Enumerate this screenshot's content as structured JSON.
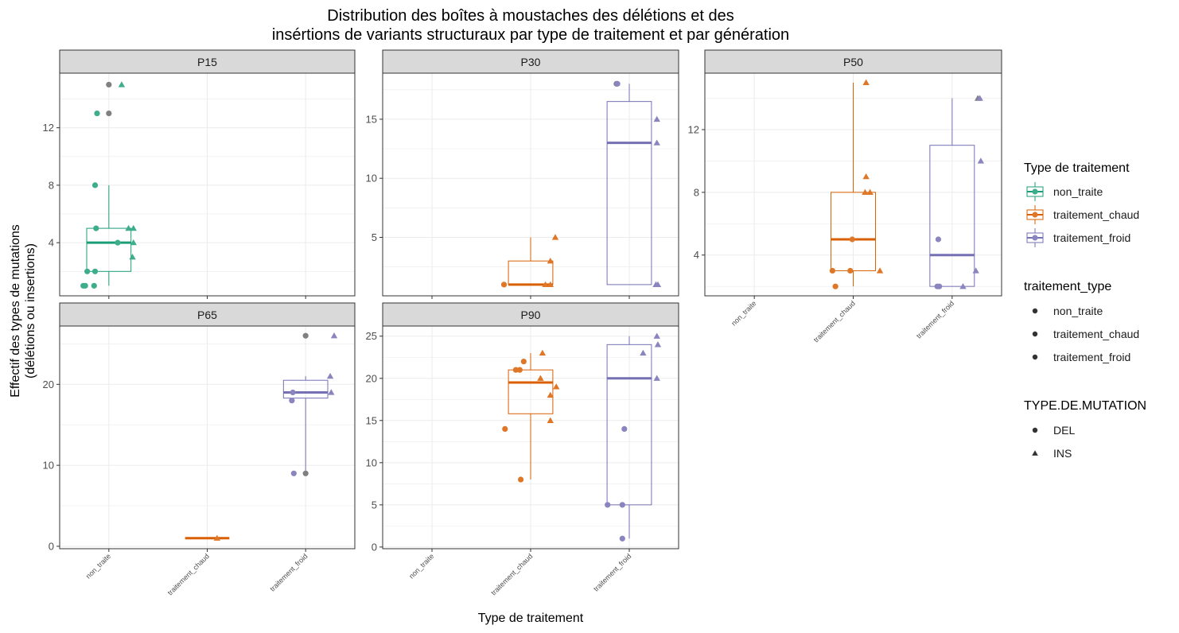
{
  "chart_data": {
    "type": "box",
    "title_line1": "Distribution des boîtes à moustaches des délétions et des",
    "title_line2": "insértions de variants structuraux  par type de traitement et par génération",
    "xlabel": "Type de traitement",
    "ylabel_line1": "Effectif des types de mutations",
    "ylabel_line2": "(délétions ou insertions)",
    "categories": [
      "non_traite",
      "traitement_chaud",
      "traitement_froid"
    ],
    "colors": {
      "non_traite": "#1B9E77",
      "traitement_chaud": "#D95F02",
      "traitement_froid": "#7570B3",
      "overlap": "#808080",
      "strip": "#D9D9D9",
      "grid": "#EBEBEB"
    },
    "legend": {
      "fill_title": "Type de traitement",
      "type_title": "traitement_type",
      "shape_title": "TYPE.DE.MUTATION",
      "fill_items": [
        "non_traite",
        "traitement_chaud",
        "traitement_froid"
      ],
      "type_items": [
        "non_traite",
        "traitement_chaud",
        "traitement_froid"
      ],
      "shape_items": [
        "DEL",
        "INS"
      ],
      "placement": "right"
    },
    "panels": [
      {
        "name": "P15",
        "ylim": [
          0.3,
          15.8
        ],
        "yticks": [
          4,
          8,
          12
        ],
        "show_x_labels": false,
        "boxes": [
          {
            "category": "non_traite",
            "whisker_low": 1,
            "q1": 2,
            "median": 4,
            "q3": 5,
            "whisker_high": 8
          }
        ],
        "points": [
          {
            "category": "non_traite",
            "y": 15,
            "shape": "DEL",
            "color": "overlap",
            "jitter": 0.0
          },
          {
            "category": "non_traite",
            "y": 15,
            "shape": "INS",
            "color": "non_traite",
            "jitter": 0.13
          },
          {
            "category": "non_traite",
            "y": 13,
            "shape": "DEL",
            "color": "non_traite",
            "jitter": -0.12
          },
          {
            "category": "non_traite",
            "y": 13,
            "shape": "DEL",
            "color": "overlap",
            "jitter": 0.0
          },
          {
            "category": "non_traite",
            "y": 8,
            "shape": "DEL",
            "color": "non_traite",
            "jitter": -0.14
          },
          {
            "category": "non_traite",
            "y": 5,
            "shape": "DEL",
            "color": "non_traite",
            "jitter": -0.13
          },
          {
            "category": "non_traite",
            "y": 5,
            "shape": "INS",
            "color": "non_traite",
            "jitter": 0.2
          },
          {
            "category": "non_traite",
            "y": 5,
            "shape": "INS",
            "color": "non_traite",
            "jitter": 0.25
          },
          {
            "category": "non_traite",
            "y": 4,
            "shape": "DEL",
            "color": "non_traite",
            "jitter": 0.09
          },
          {
            "category": "non_traite",
            "y": 4,
            "shape": "INS",
            "color": "non_traite",
            "jitter": 0.25
          },
          {
            "category": "non_traite",
            "y": 3,
            "shape": "INS",
            "color": "non_traite",
            "jitter": 0.24
          },
          {
            "category": "non_traite",
            "y": 2,
            "shape": "DEL",
            "color": "non_traite",
            "jitter": -0.22
          },
          {
            "category": "non_traite",
            "y": 2,
            "shape": "DEL",
            "color": "non_traite",
            "jitter": -0.14
          },
          {
            "category": "non_traite",
            "y": 1,
            "shape": "DEL",
            "color": "non_traite",
            "jitter": -0.26
          },
          {
            "category": "non_traite",
            "y": 1,
            "shape": "DEL",
            "color": "non_traite",
            "jitter": -0.24
          },
          {
            "category": "non_traite",
            "y": 1,
            "shape": "DEL",
            "color": "non_traite",
            "jitter": -0.15
          }
        ]
      },
      {
        "name": "P30",
        "ylim": [
          0.05,
          18.9
        ],
        "yticks": [
          5,
          10,
          15
        ],
        "show_x_labels": false,
        "boxes": [
          {
            "category": "traitement_chaud",
            "whisker_low": 1,
            "q1": 1,
            "median": 1,
            "q3": 3,
            "whisker_high": 5
          },
          {
            "category": "traitement_froid",
            "whisker_low": 1,
            "q1": 1,
            "median": 13,
            "q3": 16.5,
            "whisker_high": 18
          }
        ],
        "points": [
          {
            "category": "traitement_chaud",
            "y": 5,
            "shape": "INS",
            "color": "traitement_chaud",
            "jitter": 0.25
          },
          {
            "category": "traitement_chaud",
            "y": 3,
            "shape": "INS",
            "color": "traitement_chaud",
            "jitter": 0.2
          },
          {
            "category": "traitement_chaud",
            "y": 1,
            "shape": "DEL",
            "color": "traitement_chaud",
            "jitter": -0.27
          },
          {
            "category": "traitement_chaud",
            "y": 1,
            "shape": "INS",
            "color": "traitement_chaud",
            "jitter": 0.15
          },
          {
            "category": "traitement_chaud",
            "y": 1,
            "shape": "INS",
            "color": "traitement_chaud",
            "jitter": 0.2
          },
          {
            "category": "traitement_froid",
            "y": 18,
            "shape": "DEL",
            "color": "overlap",
            "jitter": -0.13
          },
          {
            "category": "traitement_froid",
            "y": 18,
            "shape": "DEL",
            "color": "traitement_froid",
            "jitter": -0.12
          },
          {
            "category": "traitement_froid",
            "y": 15,
            "shape": "INS",
            "color": "traitement_froid",
            "jitter": 0.28
          },
          {
            "category": "traitement_froid",
            "y": 13,
            "shape": "INS",
            "color": "traitement_froid",
            "jitter": 0.28
          },
          {
            "category": "traitement_froid",
            "y": 1,
            "shape": "INS",
            "color": "traitement_froid",
            "jitter": 0.27
          },
          {
            "category": "traitement_froid",
            "y": 1,
            "shape": "INS",
            "color": "traitement_froid",
            "jitter": 0.29
          }
        ]
      },
      {
        "name": "P50",
        "ylim": [
          1.4,
          15.6
        ],
        "yticks": [
          4,
          8,
          12
        ],
        "show_x_labels": true,
        "boxes": [
          {
            "category": "traitement_chaud",
            "whisker_low": 2,
            "q1": 3,
            "median": 5,
            "q3": 8,
            "whisker_high": 15
          },
          {
            "category": "traitement_froid",
            "whisker_low": 2,
            "q1": 2,
            "median": 4,
            "q3": 11,
            "whisker_high": 14
          }
        ],
        "points": [
          {
            "category": "traitement_chaud",
            "y": 15,
            "shape": "INS",
            "color": "traitement_chaud",
            "jitter": 0.13
          },
          {
            "category": "traitement_chaud",
            "y": 9,
            "shape": "INS",
            "color": "traitement_chaud",
            "jitter": 0.13
          },
          {
            "category": "traitement_chaud",
            "y": 8,
            "shape": "INS",
            "color": "traitement_chaud",
            "jitter": 0.12
          },
          {
            "category": "traitement_chaud",
            "y": 8,
            "shape": "INS",
            "color": "traitement_chaud",
            "jitter": 0.17
          },
          {
            "category": "traitement_chaud",
            "y": 5,
            "shape": "DEL",
            "color": "traitement_chaud",
            "jitter": -0.01
          },
          {
            "category": "traitement_chaud",
            "y": 3,
            "shape": "DEL",
            "color": "traitement_chaud",
            "jitter": -0.21
          },
          {
            "category": "traitement_chaud",
            "y": 3,
            "shape": "DEL",
            "color": "traitement_chaud",
            "jitter": -0.03
          },
          {
            "category": "traitement_chaud",
            "y": 3,
            "shape": "INS",
            "color": "traitement_chaud",
            "jitter": 0.27
          },
          {
            "category": "traitement_chaud",
            "y": 2,
            "shape": "DEL",
            "color": "traitement_chaud",
            "jitter": -0.18
          },
          {
            "category": "traitement_froid",
            "y": 14,
            "shape": "INS",
            "color": "overlap",
            "jitter": 0.26
          },
          {
            "category": "traitement_froid",
            "y": 14,
            "shape": "INS",
            "color": "traitement_froid",
            "jitter": 0.28
          },
          {
            "category": "traitement_froid",
            "y": 10,
            "shape": "INS",
            "color": "traitement_froid",
            "jitter": 0.29
          },
          {
            "category": "traitement_froid",
            "y": 5,
            "shape": "DEL",
            "color": "traitement_froid",
            "jitter": -0.14
          },
          {
            "category": "traitement_froid",
            "y": 3,
            "shape": "INS",
            "color": "traitement_froid",
            "jitter": 0.24
          },
          {
            "category": "traitement_froid",
            "y": 2,
            "shape": "DEL",
            "color": "traitement_froid",
            "jitter": -0.15
          },
          {
            "category": "traitement_froid",
            "y": 2,
            "shape": "DEL",
            "color": "traitement_froid",
            "jitter": -0.13
          },
          {
            "category": "traitement_froid",
            "y": 2,
            "shape": "INS",
            "color": "traitement_froid",
            "jitter": 0.11
          }
        ]
      },
      {
        "name": "P65",
        "ylim": [
          -0.3,
          27.2
        ],
        "yticks": [
          0,
          10,
          20
        ],
        "show_x_labels": true,
        "boxes": [
          {
            "category": "traitement_chaud",
            "whisker_low": 1,
            "q1": 1,
            "median": 1,
            "q3": 1,
            "whisker_high": 1
          },
          {
            "category": "traitement_froid",
            "whisker_low": 9,
            "q1": 18.3,
            "median": 19,
            "q3": 20.5,
            "whisker_high": 21
          }
        ],
        "points": [
          {
            "category": "traitement_chaud",
            "y": 1,
            "shape": "INS",
            "color": "traitement_chaud",
            "jitter": 0.1
          },
          {
            "category": "traitement_froid",
            "y": 26,
            "shape": "DEL",
            "color": "overlap",
            "jitter": 0.0
          },
          {
            "category": "traitement_froid",
            "y": 26,
            "shape": "INS",
            "color": "traitement_froid",
            "jitter": 0.29
          },
          {
            "category": "traitement_froid",
            "y": 21,
            "shape": "INS",
            "color": "traitement_froid",
            "jitter": 0.25
          },
          {
            "category": "traitement_froid",
            "y": 19,
            "shape": "DEL",
            "color": "traitement_froid",
            "jitter": -0.13
          },
          {
            "category": "traitement_froid",
            "y": 19,
            "shape": "INS",
            "color": "traitement_froid",
            "jitter": 0.26
          },
          {
            "category": "traitement_froid",
            "y": 18,
            "shape": "DEL",
            "color": "traitement_froid",
            "jitter": -0.14
          },
          {
            "category": "traitement_froid",
            "y": 9,
            "shape": "DEL",
            "color": "traitement_froid",
            "jitter": -0.12
          },
          {
            "category": "traitement_froid",
            "y": 9,
            "shape": "DEL",
            "color": "overlap",
            "jitter": 0.0
          }
        ]
      },
      {
        "name": "P90",
        "ylim": [
          -0.2,
          26.2
        ],
        "yticks": [
          0,
          5,
          10,
          15,
          20,
          25
        ],
        "show_x_labels": true,
        "boxes": [
          {
            "category": "traitement_chaud",
            "whisker_low": 8,
            "q1": 15.8,
            "median": 19.5,
            "q3": 21,
            "whisker_high": 23
          },
          {
            "category": "traitement_froid",
            "whisker_low": 1,
            "q1": 5,
            "median": 20,
            "q3": 24,
            "whisker_high": 25
          }
        ],
        "points": [
          {
            "category": "traitement_chaud",
            "y": 23,
            "shape": "INS",
            "color": "traitement_chaud",
            "jitter": 0.12
          },
          {
            "category": "traitement_chaud",
            "y": 22,
            "shape": "DEL",
            "color": "traitement_chaud",
            "jitter": -0.07
          },
          {
            "category": "traitement_chaud",
            "y": 21,
            "shape": "DEL",
            "color": "traitement_chaud",
            "jitter": -0.15
          },
          {
            "category": "traitement_chaud",
            "y": 21,
            "shape": "DEL",
            "color": "traitement_chaud",
            "jitter": -0.11
          },
          {
            "category": "traitement_chaud",
            "y": 20,
            "shape": "INS",
            "color": "traitement_chaud",
            "jitter": 0.1
          },
          {
            "category": "traitement_chaud",
            "y": 19,
            "shape": "INS",
            "color": "traitement_chaud",
            "jitter": 0.26
          },
          {
            "category": "traitement_chaud",
            "y": 18,
            "shape": "INS",
            "color": "traitement_chaud",
            "jitter": 0.2
          },
          {
            "category": "traitement_chaud",
            "y": 15,
            "shape": "INS",
            "color": "traitement_chaud",
            "jitter": 0.2
          },
          {
            "category": "traitement_chaud",
            "y": 14,
            "shape": "DEL",
            "color": "traitement_chaud",
            "jitter": -0.26
          },
          {
            "category": "traitement_chaud",
            "y": 8,
            "shape": "DEL",
            "color": "traitement_chaud",
            "jitter": -0.1
          },
          {
            "category": "traitement_froid",
            "y": 25,
            "shape": "INS",
            "color": "traitement_froid",
            "jitter": 0.28
          },
          {
            "category": "traitement_froid",
            "y": 24,
            "shape": "INS",
            "color": "traitement_froid",
            "jitter": 0.29
          },
          {
            "category": "traitement_froid",
            "y": 23,
            "shape": "INS",
            "color": "traitement_froid",
            "jitter": 0.14
          },
          {
            "category": "traitement_froid",
            "y": 20,
            "shape": "INS",
            "color": "traitement_froid",
            "jitter": 0.28
          },
          {
            "category": "traitement_froid",
            "y": 14,
            "shape": "DEL",
            "color": "traitement_froid",
            "jitter": -0.05
          },
          {
            "category": "traitement_froid",
            "y": 5,
            "shape": "DEL",
            "color": "traitement_froid",
            "jitter": -0.22
          },
          {
            "category": "traitement_froid",
            "y": 5,
            "shape": "DEL",
            "color": "traitement_froid",
            "jitter": -0.07
          },
          {
            "category": "traitement_froid",
            "y": 1,
            "shape": "DEL",
            "color": "traitement_froid",
            "jitter": -0.07
          }
        ]
      }
    ]
  }
}
